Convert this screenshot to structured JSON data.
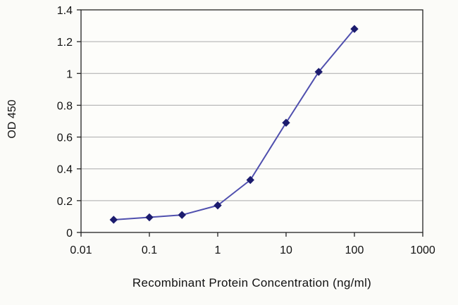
{
  "chart_data": {
    "type": "line",
    "title": "",
    "xlabel": "Recombinant Protein Concentration (ng/ml)",
    "ylabel": "OD 450",
    "x_scale": "log",
    "xlim": [
      0.01,
      1000
    ],
    "ylim": [
      0,
      1.4
    ],
    "x": [
      0.03,
      0.1,
      0.3,
      1,
      3,
      10,
      30,
      100
    ],
    "y": [
      0.08,
      0.095,
      0.11,
      0.17,
      0.33,
      0.69,
      1.01,
      1.28
    ],
    "x_tick_values": [
      0.01,
      0.1,
      1,
      10,
      100,
      1000
    ],
    "x_tick_labels": [
      "0.01",
      "0.1",
      "1",
      "10",
      "100",
      "1000"
    ],
    "y_tick_values": [
      0,
      0.2,
      0.4,
      0.6,
      0.8,
      1,
      1.2,
      1.4
    ],
    "y_tick_labels": [
      "0",
      "0.2",
      "0.4",
      "0.6",
      "0.8",
      "1",
      "1.2",
      "1.4"
    ],
    "grid": "horizontal",
    "legend": "none",
    "colors": {
      "line": "#4f4fae",
      "marker": "#1c1c6e",
      "gridline": "#aaaaaa",
      "axis": "#222222",
      "plot_background": "#fdfdfa"
    }
  }
}
